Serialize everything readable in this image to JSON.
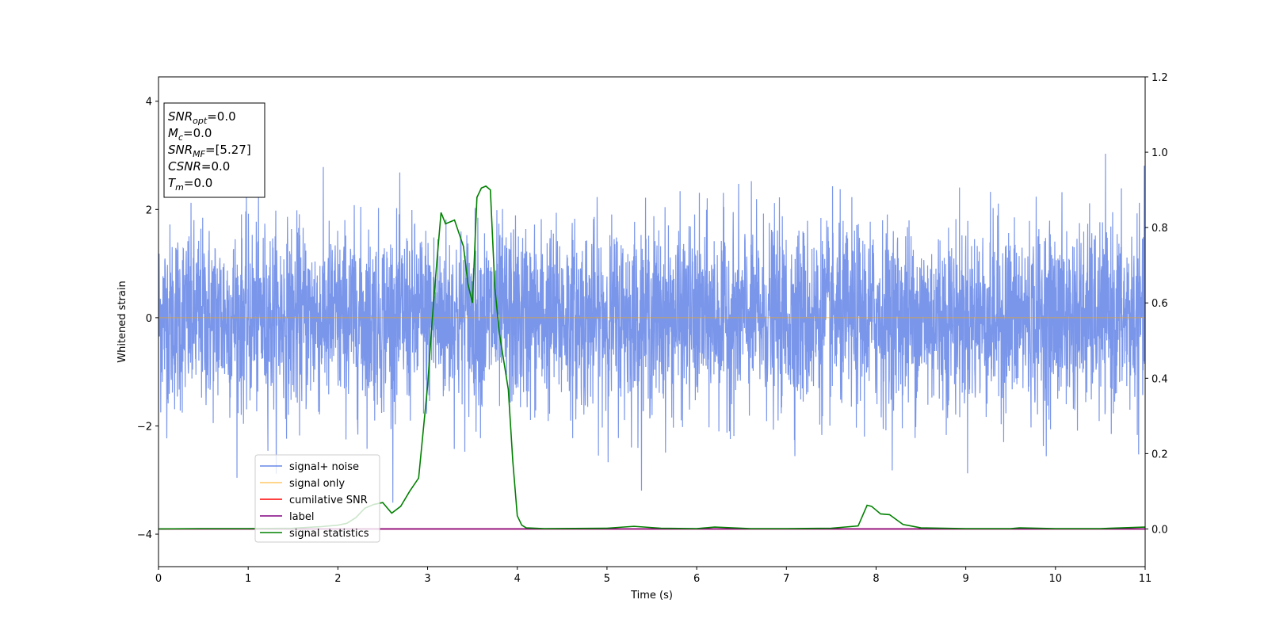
{
  "chart_data": {
    "type": "line",
    "xlabel": "Time (s)",
    "ylabel": "Whitened strain",
    "xlim": [
      0,
      11
    ],
    "ylim": [
      -4.6,
      4.45
    ],
    "y2lim": [
      -0.1,
      1.2
    ],
    "x_ticks": [
      0,
      1,
      2,
      3,
      4,
      5,
      6,
      7,
      8,
      9,
      10,
      11
    ],
    "y_ticks": [
      -4,
      -2,
      0,
      2,
      4
    ],
    "y2_ticks": [
      0.0,
      0.2,
      0.4,
      0.6,
      0.8,
      1.0,
      1.2
    ],
    "grid": false,
    "legend_position": "lower-left",
    "annotation": {
      "lines": [
        {
          "var": "SNR",
          "sub": "opt",
          "value": "=0.0"
        },
        {
          "var": "M",
          "sub": "c",
          "value": "=0.0"
        },
        {
          "var": "SNR",
          "sub": "MF",
          "value": "=[5.27]"
        },
        {
          "var": "CSNR",
          "sub": "",
          "value": "=0.0"
        },
        {
          "var": "T",
          "sub": "m",
          "value": "=0.0"
        }
      ]
    },
    "series": [
      {
        "name": "signal+ noise",
        "axis": "left",
        "color": "#4169e1",
        "description_kind": "noise",
        "amplitude_std": 0.85,
        "peak_min": -4.15,
        "peak_max": 3.55
      },
      {
        "name": "signal only",
        "axis": "left",
        "color": "#ffa500",
        "x": [
          0,
          11
        ],
        "y": [
          0,
          0
        ]
      },
      {
        "name": "cumilative SNR",
        "axis": "right",
        "color": "#ff0000",
        "x": [
          0,
          11
        ],
        "y": [
          0,
          0
        ]
      },
      {
        "name": "label",
        "axis": "right",
        "color": "#800080",
        "x": [
          0,
          11
        ],
        "y": [
          0,
          0
        ]
      },
      {
        "name": "signal statistics",
        "axis": "right",
        "color": "#008000",
        "x": [
          0,
          0.5,
          1.0,
          1.5,
          1.8,
          2.0,
          2.1,
          2.2,
          2.3,
          2.4,
          2.5,
          2.6,
          2.7,
          2.8,
          2.9,
          3.0,
          3.05,
          3.1,
          3.15,
          3.2,
          3.3,
          3.4,
          3.45,
          3.5,
          3.55,
          3.6,
          3.65,
          3.7,
          3.75,
          3.8,
          3.9,
          3.95,
          4.0,
          4.05,
          4.1,
          4.3,
          5.0,
          5.3,
          5.6,
          6.0,
          6.2,
          6.6,
          7.0,
          7.5,
          7.8,
          7.9,
          7.95,
          8.0,
          8.05,
          8.15,
          8.3,
          8.5,
          9.0,
          9.5,
          9.6,
          10.0,
          10.5,
          11.0
        ],
        "y": [
          0.0,
          0.001,
          0.001,
          0.002,
          0.006,
          0.01,
          0.015,
          0.03,
          0.055,
          0.065,
          0.07,
          0.042,
          0.06,
          0.1,
          0.135,
          0.38,
          0.55,
          0.7,
          0.84,
          0.81,
          0.82,
          0.75,
          0.65,
          0.6,
          0.88,
          0.905,
          0.91,
          0.9,
          0.64,
          0.52,
          0.37,
          0.18,
          0.035,
          0.01,
          0.003,
          0.001,
          0.002,
          0.007,
          0.002,
          0.001,
          0.005,
          0.001,
          0.001,
          0.002,
          0.008,
          0.063,
          0.06,
          0.05,
          0.04,
          0.038,
          0.012,
          0.003,
          0.001,
          0.001,
          0.003,
          0.001,
          0.001,
          0.005
        ]
      }
    ]
  }
}
